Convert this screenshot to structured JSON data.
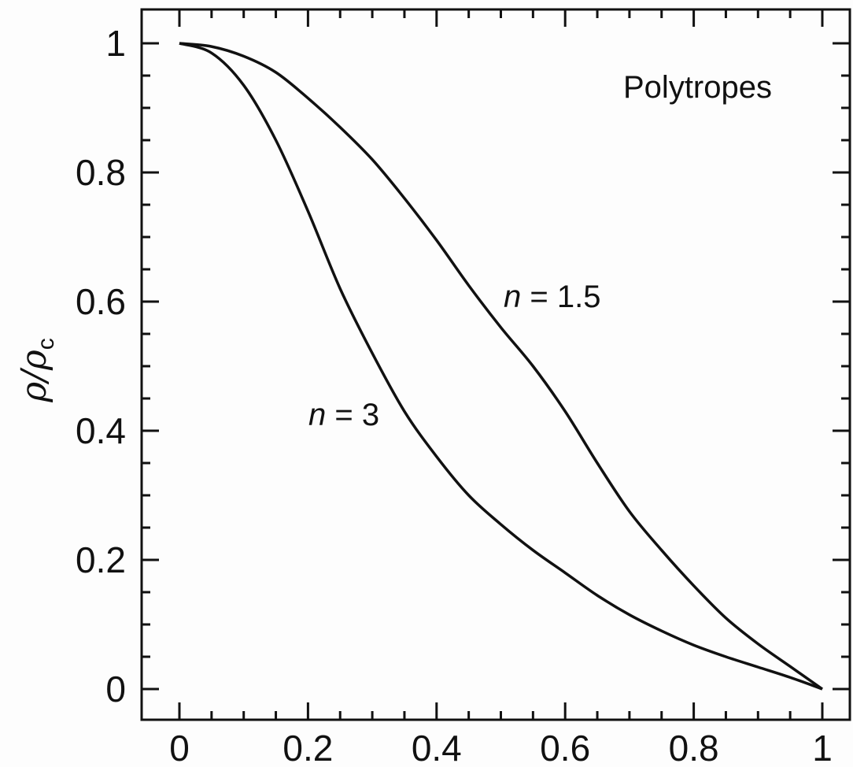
{
  "chart_data": {
    "type": "line",
    "title": "",
    "xlabel": "",
    "ylabel": {
      "main": "ρ/ρ",
      "sub": "c"
    },
    "xlim": [
      0,
      1
    ],
    "ylim": [
      0,
      1
    ],
    "x_ticks": [
      "0",
      "0.2",
      "0.4",
      "0.6",
      "0.8",
      "1"
    ],
    "y_ticks": [
      "0",
      "0.2",
      "0.4",
      "0.6",
      "0.8",
      "1"
    ],
    "x_tick_values": [
      0,
      0.2,
      0.4,
      0.6,
      0.8,
      1
    ],
    "y_tick_values": [
      0,
      0.2,
      0.4,
      0.6,
      0.8,
      1
    ],
    "grid": false,
    "annotation": "Polytropes",
    "series": [
      {
        "name": "n = 1.5",
        "label_parts": {
          "var": "n",
          "rest": " = 1.5"
        },
        "x": [
          0,
          0.05,
          0.1,
          0.15,
          0.2,
          0.25,
          0.3,
          0.35,
          0.4,
          0.45,
          0.5,
          0.55,
          0.6,
          0.65,
          0.7,
          0.75,
          0.8,
          0.85,
          0.9,
          0.95,
          1.0
        ],
        "y": [
          1.0,
          0.995,
          0.98,
          0.955,
          0.915,
          0.87,
          0.82,
          0.76,
          0.695,
          0.625,
          0.56,
          0.5,
          0.43,
          0.35,
          0.275,
          0.215,
          0.16,
          0.11,
          0.07,
          0.035,
          0.0
        ]
      },
      {
        "name": "n = 3",
        "label_parts": {
          "var": "n",
          "rest": " = 3"
        },
        "x": [
          0,
          0.05,
          0.1,
          0.15,
          0.2,
          0.25,
          0.3,
          0.35,
          0.4,
          0.45,
          0.5,
          0.55,
          0.6,
          0.65,
          0.7,
          0.75,
          0.8,
          0.85,
          0.9,
          0.95,
          1.0
        ],
        "y": [
          1.0,
          0.985,
          0.935,
          0.85,
          0.74,
          0.62,
          0.52,
          0.43,
          0.36,
          0.3,
          0.255,
          0.215,
          0.18,
          0.145,
          0.115,
          0.09,
          0.068,
          0.05,
          0.034,
          0.018,
          0.0
        ]
      }
    ]
  },
  "colors": {
    "line": "#111111",
    "axis": "#111111",
    "background": "#fdfdfd"
  }
}
